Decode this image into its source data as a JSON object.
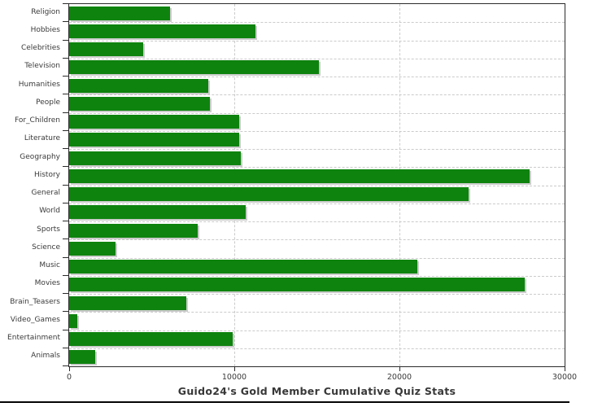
{
  "chart_data": {
    "type": "bar",
    "orientation": "horizontal",
    "title": "Guido24's Gold Member Cumulative Quiz Stats",
    "categories": [
      "Religion",
      "Hobbies",
      "Celebrities",
      "Television",
      "Humanities",
      "People",
      "For_Children",
      "Literature",
      "Geography",
      "History",
      "General",
      "World",
      "Sports",
      "Science",
      "Music",
      "Movies",
      "Brain_Teasers",
      "Video_Games",
      "Entertainment",
      "Animals"
    ],
    "values": [
      6100,
      11300,
      4500,
      15100,
      8400,
      8500,
      10300,
      10300,
      10400,
      27900,
      24200,
      10700,
      7800,
      2800,
      21100,
      27600,
      7100,
      500,
      9900,
      1600
    ],
    "xlabel": "",
    "ylabel": "",
    "xlim": [
      0,
      30000
    ],
    "x_ticks": [
      0,
      10000,
      20000,
      30000
    ],
    "x_tick_labels": [
      "0",
      "10000",
      "20000",
      "30000"
    ],
    "grid": "dashed",
    "legend": false,
    "bar_color": "#0e830e",
    "bar_shadow_color": "#cccccc",
    "grid_color": "#cbcbcb",
    "axis_color": "#2b2b2b",
    "text_color": "#3a3a3a",
    "background": "#ffffff"
  }
}
